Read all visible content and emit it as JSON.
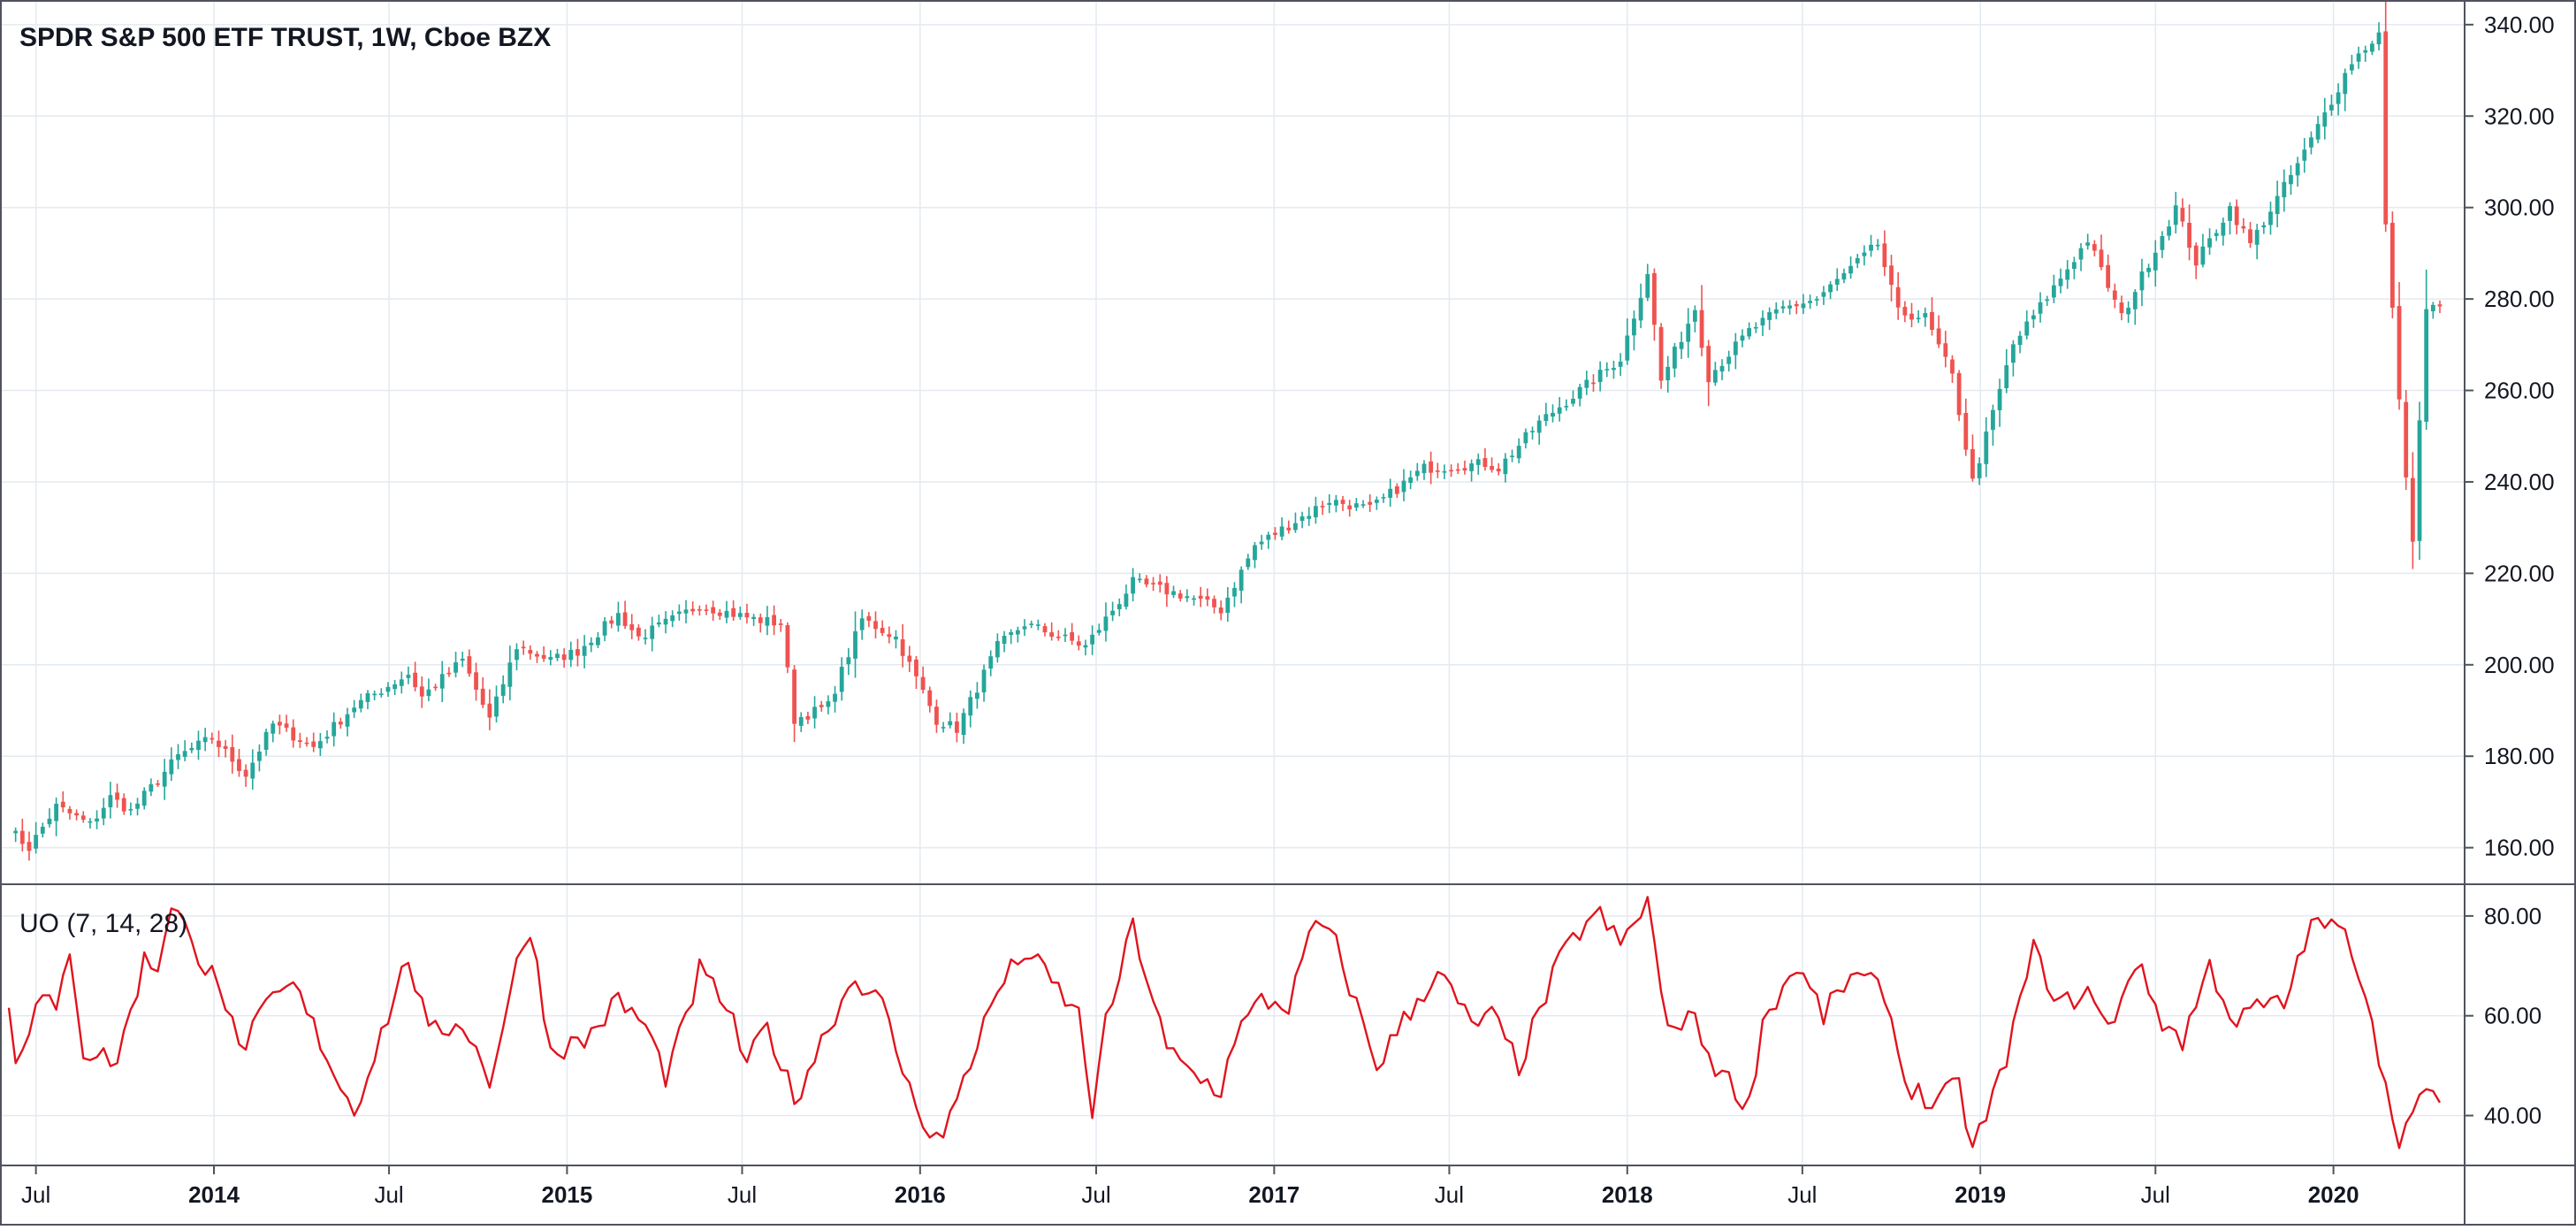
{
  "chart_data": [
    {
      "type": "candlestick",
      "title": "SPDR S&P 500 ETF TRUST, 1W, Cboe BZX",
      "y_ticks": [
        "340.00",
        "320.00",
        "300.00",
        "280.00",
        "260.00",
        "240.00",
        "220.00",
        "200.00",
        "180.00",
        "160.00"
      ],
      "y_tick_values": [
        340,
        320,
        300,
        280,
        260,
        240,
        220,
        200,
        180,
        160
      ],
      "ylim": [
        152,
        345
      ],
      "xlim": [
        "2013-06-03",
        "2020-04-20"
      ],
      "x_ticks": [
        {
          "label": "Jul",
          "date": "2013-07-01",
          "bold": false
        },
        {
          "label": "2014",
          "date": "2014-01-01",
          "bold": true
        },
        {
          "label": "Jul",
          "date": "2014-07-01",
          "bold": false
        },
        {
          "label": "2015",
          "date": "2015-01-01",
          "bold": true
        },
        {
          "label": "Jul",
          "date": "2015-07-01",
          "bold": false
        },
        {
          "label": "2016",
          "date": "2016-01-01",
          "bold": true
        },
        {
          "label": "Jul",
          "date": "2016-07-01",
          "bold": false
        },
        {
          "label": "2017",
          "date": "2017-01-01",
          "bold": true
        },
        {
          "label": "Jul",
          "date": "2017-07-01",
          "bold": false
        },
        {
          "label": "2018",
          "date": "2018-01-01",
          "bold": true
        },
        {
          "label": "Jul",
          "date": "2018-07-01",
          "bold": false
        },
        {
          "label": "2019",
          "date": "2019-01-01",
          "bold": true
        },
        {
          "label": "Jul",
          "date": "2019-07-01",
          "bold": false
        },
        {
          "label": "2020",
          "date": "2020-01-01",
          "bold": true
        }
      ],
      "up_color": "#26a69a",
      "down_color": "#ef5350",
      "close_anchors": [
        [
          "2013-06-03",
          164
        ],
        [
          "2013-06-24",
          160
        ],
        [
          "2013-07-22",
          169
        ],
        [
          "2013-08-26",
          165
        ],
        [
          "2013-09-16",
          171
        ],
        [
          "2013-10-07",
          168
        ],
        [
          "2013-11-25",
          180
        ],
        [
          "2013-12-30",
          184
        ],
        [
          "2014-02-03",
          176
        ],
        [
          "2014-03-03",
          187
        ],
        [
          "2014-04-14",
          182
        ],
        [
          "2014-05-26",
          191
        ],
        [
          "2014-07-21",
          198
        ],
        [
          "2014-08-04",
          193
        ],
        [
          "2014-09-15",
          201
        ],
        [
          "2014-10-13",
          188
        ],
        [
          "2014-11-10",
          204
        ],
        [
          "2014-12-15",
          201
        ],
        [
          "2015-01-12",
          203
        ],
        [
          "2015-02-23",
          211
        ],
        [
          "2015-03-16",
          206
        ],
        [
          "2015-05-18",
          213
        ],
        [
          "2015-07-13",
          210
        ],
        [
          "2015-08-10",
          209
        ],
        [
          "2015-08-24",
          188
        ],
        [
          "2015-09-28",
          191
        ],
        [
          "2015-11-02",
          210
        ],
        [
          "2015-12-07",
          206
        ],
        [
          "2016-01-18",
          188
        ],
        [
          "2016-02-08",
          186
        ],
        [
          "2016-03-21",
          204
        ],
        [
          "2016-04-18",
          209
        ],
        [
          "2016-06-20",
          204
        ],
        [
          "2016-08-08",
          218
        ],
        [
          "2016-10-03",
          215
        ],
        [
          "2016-11-07",
          212
        ],
        [
          "2016-12-12",
          226
        ],
        [
          "2017-02-27",
          236
        ],
        [
          "2017-04-10",
          234
        ],
        [
          "2017-06-05",
          243
        ],
        [
          "2017-08-07",
          244
        ],
        [
          "2017-08-21",
          243
        ],
        [
          "2017-10-02",
          253
        ],
        [
          "2017-12-25",
          267
        ],
        [
          "2018-01-22",
          286
        ],
        [
          "2018-02-05",
          262
        ],
        [
          "2018-03-12",
          278
        ],
        [
          "2018-03-26",
          263
        ],
        [
          "2018-05-07",
          273
        ],
        [
          "2018-06-11",
          278
        ],
        [
          "2018-07-16",
          280
        ],
        [
          "2018-09-17",
          292
        ],
        [
          "2018-10-08",
          277
        ],
        [
          "2018-11-05",
          276
        ],
        [
          "2018-12-03",
          263
        ],
        [
          "2018-12-24",
          240
        ],
        [
          "2019-02-04",
          270
        ],
        [
          "2019-04-22",
          293
        ],
        [
          "2019-05-27",
          276
        ],
        [
          "2019-07-22",
          300
        ],
        [
          "2019-08-12",
          288
        ],
        [
          "2019-09-16",
          300
        ],
        [
          "2019-10-07",
          292
        ],
        [
          "2019-12-02",
          312
        ],
        [
          "2020-01-20",
          332
        ],
        [
          "2020-02-17",
          338
        ],
        [
          "2020-02-24",
          296
        ],
        [
          "2020-03-16",
          240
        ],
        [
          "2020-03-23",
          228
        ],
        [
          "2020-04-06",
          278
        ]
      ]
    },
    {
      "type": "line",
      "title": "UO (7, 14, 28)",
      "series": [
        {
          "values": []
        }
      ],
      "y_ticks": [
        "80.00",
        "60.00",
        "40.00"
      ],
      "y_tick_values": [
        80,
        60,
        40
      ],
      "ylim": [
        30,
        86
      ],
      "color": "#e0141e",
      "anchors": [
        [
          "2013-06-03",
          62
        ],
        [
          "2013-06-10",
          52
        ],
        [
          "2013-07-08",
          64
        ],
        [
          "2013-07-22",
          60
        ],
        [
          "2013-08-05",
          74
        ],
        [
          "2013-08-19",
          53
        ],
        [
          "2013-09-23",
          51
        ],
        [
          "2013-10-21",
          71
        ],
        [
          "2013-11-04",
          70
        ],
        [
          "2013-11-18",
          83
        ],
        [
          "2013-12-02",
          78
        ],
        [
          "2013-12-16",
          69
        ],
        [
          "2013-12-30",
          72
        ],
        [
          "2014-01-27",
          53
        ],
        [
          "2014-03-03",
          63
        ],
        [
          "2014-03-24",
          66
        ],
        [
          "2014-04-21",
          55
        ],
        [
          "2014-05-12",
          46
        ],
        [
          "2014-05-26",
          41
        ],
        [
          "2014-07-07",
          64
        ],
        [
          "2014-07-21",
          72
        ],
        [
          "2014-08-11",
          56
        ],
        [
          "2014-09-15",
          59
        ],
        [
          "2014-10-13",
          47
        ],
        [
          "2014-11-10",
          70
        ],
        [
          "2014-11-24",
          78
        ],
        [
          "2014-12-15",
          53
        ],
        [
          "2015-01-19",
          55
        ],
        [
          "2015-02-23",
          63
        ],
        [
          "2015-03-23",
          58
        ],
        [
          "2015-04-13",
          48
        ],
        [
          "2015-05-04",
          59
        ],
        [
          "2015-05-18",
          69
        ],
        [
          "2015-06-15",
          62
        ],
        [
          "2015-07-06",
          50
        ],
        [
          "2015-07-27",
          58
        ],
        [
          "2015-08-24",
          43
        ],
        [
          "2015-09-28",
          58
        ],
        [
          "2015-10-26",
          68
        ],
        [
          "2015-11-23",
          62
        ],
        [
          "2015-12-21",
          45
        ],
        [
          "2016-01-11",
          37
        ],
        [
          "2016-01-25",
          35
        ],
        [
          "2016-02-08",
          44
        ],
        [
          "2016-03-21",
          65
        ],
        [
          "2016-04-18",
          73
        ],
        [
          "2016-05-02",
          70
        ],
        [
          "2016-06-13",
          60
        ],
        [
          "2016-06-27",
          41
        ],
        [
          "2016-07-11",
          58
        ],
        [
          "2016-08-08",
          78
        ],
        [
          "2016-09-12",
          53
        ],
        [
          "2016-10-10",
          48
        ],
        [
          "2016-11-07",
          45
        ],
        [
          "2016-11-21",
          56
        ],
        [
          "2016-12-19",
          63
        ],
        [
          "2017-01-16",
          62
        ],
        [
          "2017-02-13",
          79
        ],
        [
          "2017-03-06",
          74
        ],
        [
          "2017-03-27",
          62
        ],
        [
          "2017-04-17",
          50
        ],
        [
          "2017-05-15",
          59
        ],
        [
          "2017-06-19",
          69
        ],
        [
          "2017-07-24",
          58
        ],
        [
          "2017-08-14",
          60
        ],
        [
          "2017-09-11",
          50
        ],
        [
          "2017-10-23",
          71
        ],
        [
          "2017-11-20",
          79
        ],
        [
          "2017-12-04",
          80
        ],
        [
          "2017-12-25",
          74
        ],
        [
          "2018-01-22",
          83
        ],
        [
          "2018-02-12",
          56
        ],
        [
          "2018-03-05",
          61
        ],
        [
          "2018-04-02",
          50
        ],
        [
          "2018-05-07",
          42
        ],
        [
          "2018-05-21",
          59
        ],
        [
          "2018-06-25",
          70
        ],
        [
          "2018-07-23",
          60
        ],
        [
          "2018-08-20",
          68
        ],
        [
          "2018-09-24",
          65
        ],
        [
          "2018-10-15",
          47
        ],
        [
          "2018-11-12",
          42
        ],
        [
          "2018-12-10",
          46
        ],
        [
          "2018-12-24",
          33
        ],
        [
          "2019-01-21",
          47
        ],
        [
          "2019-02-25",
          73
        ],
        [
          "2019-03-25",
          62
        ],
        [
          "2019-04-22",
          65
        ],
        [
          "2019-05-13",
          57
        ],
        [
          "2019-06-10",
          71
        ],
        [
          "2019-07-08",
          59
        ],
        [
          "2019-07-29",
          55
        ],
        [
          "2019-08-26",
          70
        ],
        [
          "2019-09-23",
          58
        ],
        [
          "2019-10-14",
          62
        ],
        [
          "2019-11-11",
          62
        ],
        [
          "2019-12-02",
          75
        ],
        [
          "2019-12-16",
          79
        ],
        [
          "2020-01-06",
          77
        ],
        [
          "2020-01-20",
          74
        ],
        [
          "2020-02-10",
          60
        ],
        [
          "2020-02-24",
          45
        ],
        [
          "2020-03-09",
          36
        ],
        [
          "2020-03-23",
          40
        ],
        [
          "2020-04-06",
          44
        ]
      ]
    }
  ]
}
